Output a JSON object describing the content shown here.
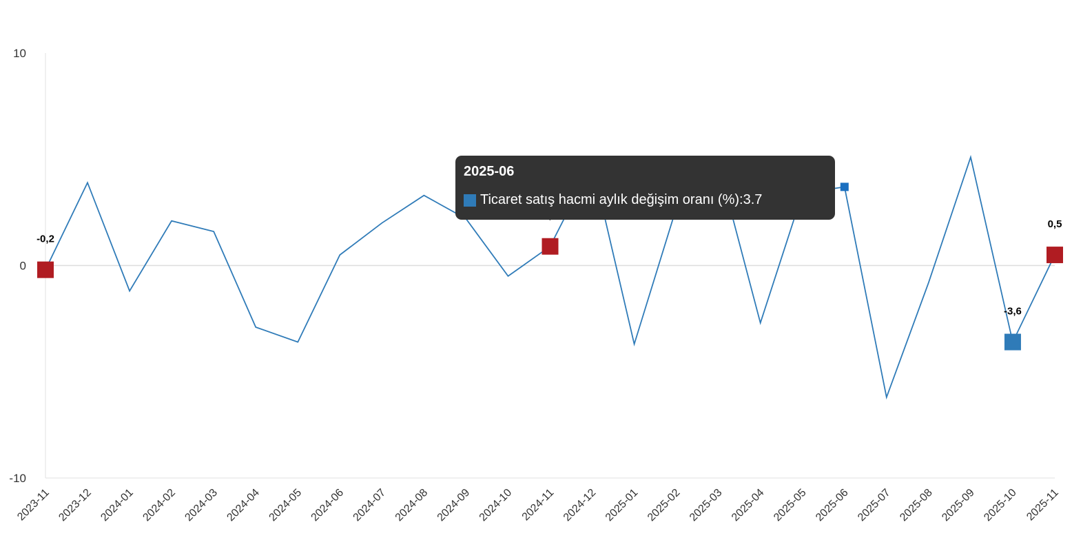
{
  "chart_data": {
    "type": "line",
    "title": "",
    "xlabel": "",
    "ylabel": "",
    "ylim": [
      -10,
      10
    ],
    "yticks": [
      "10",
      "0",
      "-10"
    ],
    "grid": "zero-line only",
    "legend": "none",
    "categories": [
      "2023-11",
      "2023-12",
      "2024-01",
      "2024-02",
      "2024-03",
      "2024-04",
      "2024-05",
      "2024-06",
      "2024-07",
      "2024-08",
      "2024-09",
      "2024-10",
      "2024-11",
      "2024-12",
      "2025-01",
      "2025-02",
      "2025-03",
      "2025-04",
      "2025-05",
      "2025-06",
      "2025-07",
      "2025-08",
      "2025-09",
      "2025-10",
      "2025-11"
    ],
    "series": [
      {
        "name": "Ticaret satış hacmi aylık değişim oranı (%)",
        "color": "#2f7bb8",
        "values": [
          -0.2,
          3.9,
          -1.2,
          2.1,
          1.6,
          -2.9,
          -3.6,
          0.5,
          2.0,
          3.3,
          2.2,
          -0.5,
          0.9,
          4.8,
          -3.7,
          2.7,
          4.8,
          -2.7,
          3.4,
          3.7,
          -6.2,
          -0.8,
          5.1,
          -3.6,
          0.5
        ]
      }
    ],
    "highlighted_points": [
      {
        "category": "2023-11",
        "label": "-0,2",
        "color": "#b01c22"
      },
      {
        "category": "2024-11",
        "label": "0,9",
        "color": "#b01c22"
      },
      {
        "category": "2025-10",
        "label": "-3,6",
        "color": "#2f7bb8"
      },
      {
        "category": "2025-11",
        "label": "0,5",
        "color": "#b01c22"
      }
    ],
    "tooltip": {
      "category": "2025-06",
      "title": "2025-06",
      "series_name": "Ticaret satış hacmi aylık değişim oranı (%)",
      "separator": ": ",
      "value": "3.7",
      "swatch_color": "#2f7bb8",
      "marker_color": "#1a6fc0"
    }
  }
}
